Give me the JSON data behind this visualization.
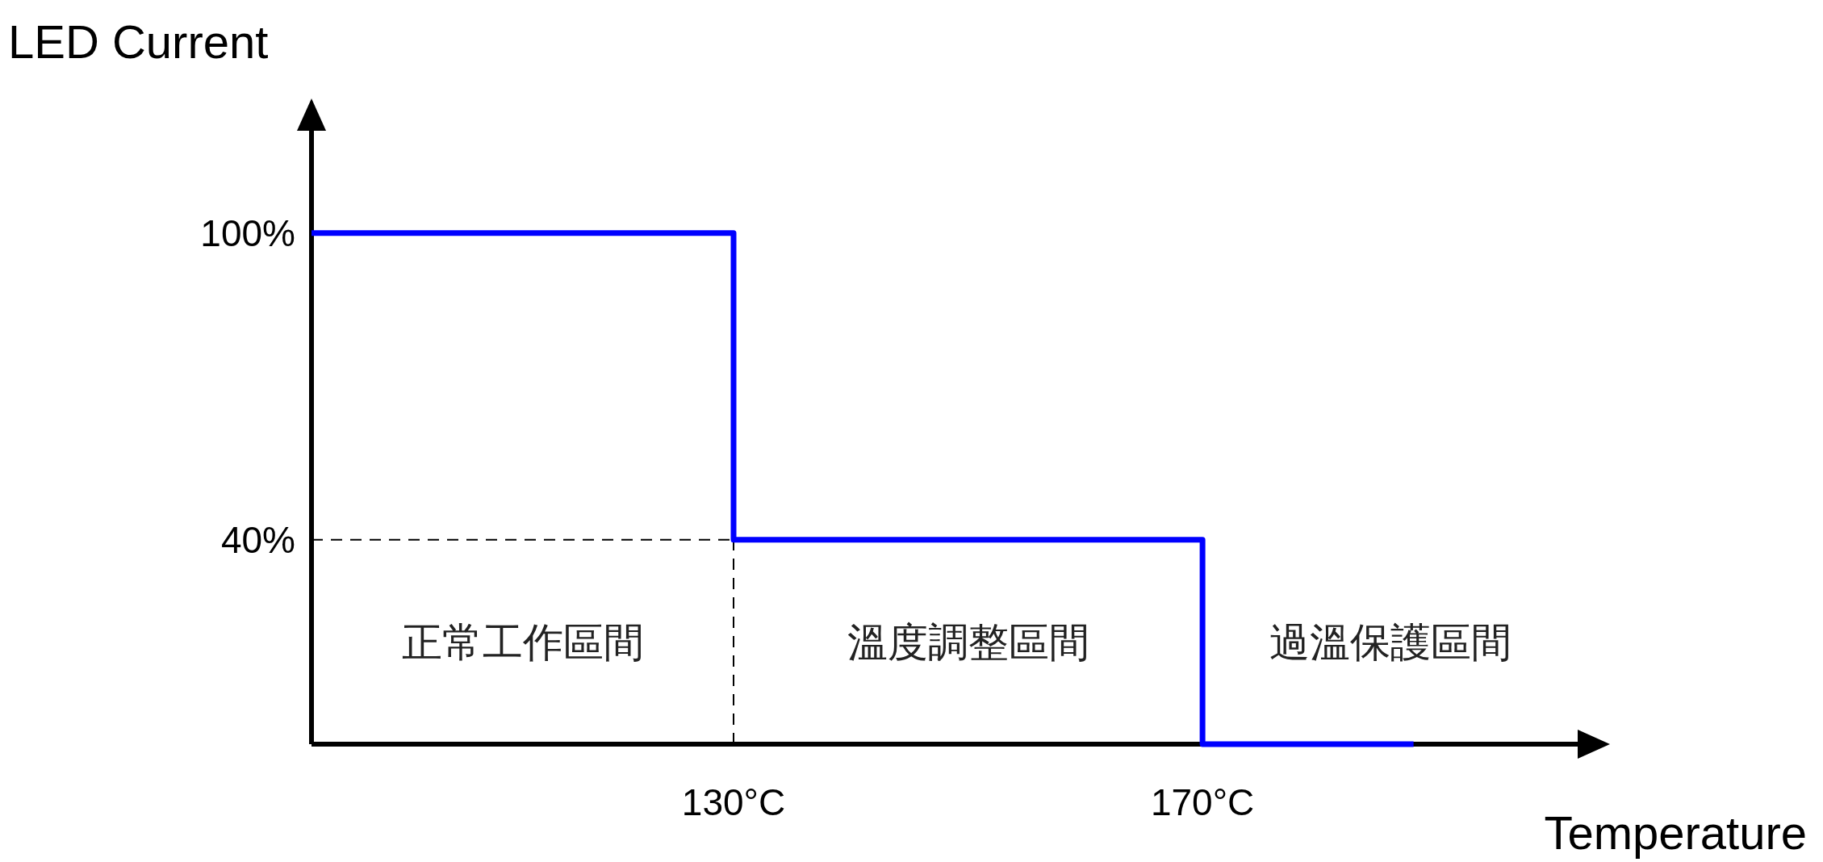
{
  "chart_data": {
    "type": "step",
    "xlabel": "Temperature",
    "ylabel": "LED Current",
    "x": [
      94,
      130,
      170,
      188
    ],
    "series": [
      {
        "color": "#0000ff",
        "values": [
          100,
          40,
          0,
          0
        ]
      }
    ],
    "xlim": [
      94,
      202
    ],
    "ylim": [
      0,
      120
    ],
    "xticks": [
      {
        "value": 130,
        "label": "130°C"
      },
      {
        "value": 170,
        "label": "170°C"
      }
    ],
    "yticks": [
      {
        "value": 40,
        "label": "40%"
      },
      {
        "value": 100,
        "label": "100%"
      }
    ],
    "ref_lines": [
      {
        "axis": "y",
        "value": 40,
        "line_style": "dashed"
      },
      {
        "axis": "x",
        "value": 130,
        "line_style": "dashed"
      }
    ],
    "annotations": [
      "正常工作區間",
      "溫度調整區間",
      "過溫保護區間"
    ],
    "grid": false
  }
}
